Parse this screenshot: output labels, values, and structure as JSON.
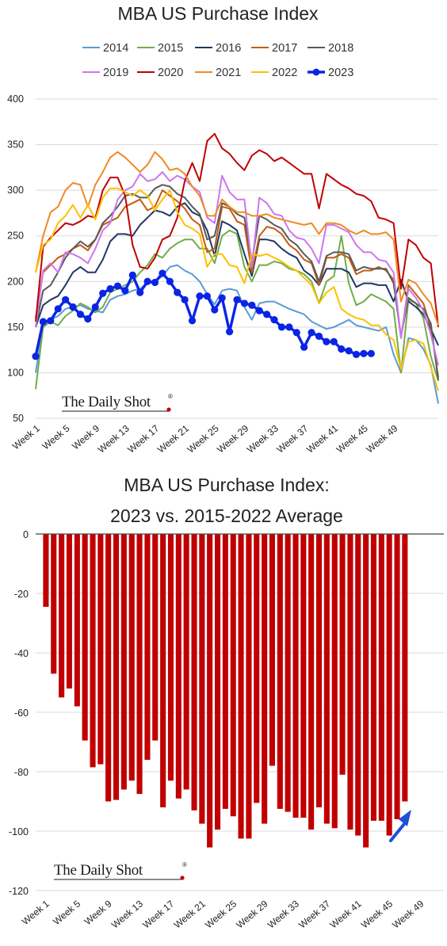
{
  "colors": {
    "2014": "#5b9bd5",
    "2015": "#70ad47",
    "2016": "#1f3864",
    "2017": "#c55a11",
    "2018": "#595959",
    "2019": "#cc77ee",
    "2020": "#c00000",
    "2021": "#f08a24",
    "2022": "#ffc000",
    "2023": "#0a24e6",
    "bar": "#c00000",
    "arrow": "#1f4fd6"
  },
  "branding": {
    "name": "The Daily Shot",
    "mark": "®"
  },
  "chart_data": [
    {
      "type": "line",
      "title": "MBA US Purchase Index",
      "xlabel": "",
      "ylabel": "",
      "ylim": [
        50,
        400
      ],
      "yticks": [
        50,
        100,
        150,
        200,
        250,
        300,
        350,
        400
      ],
      "xticks": [
        "Week 1",
        "Week 5",
        "Week 9",
        "Week 13",
        "Week 17",
        "Week 21",
        "Week 25",
        "Week 29",
        "Week 33",
        "Week 37",
        "Week 41",
        "Week 45",
        "Week 49"
      ],
      "grid": true,
      "legend": "top",
      "series": [
        {
          "name": "2014",
          "values": [
            100,
            152,
            158,
            162,
            170,
            172,
            174,
            170,
            168,
            166,
            180,
            184,
            186,
            190,
            192,
            198,
            200,
            206,
            216,
            218,
            212,
            208,
            200,
            186,
            175,
            190,
            192,
            190,
            172,
            158,
            176,
            178,
            178,
            174,
            170,
            167,
            164,
            156,
            152,
            148,
            150,
            154,
            158,
            152,
            150,
            148,
            146,
            150,
            120,
            100,
            138,
            136,
            126,
            108,
            66
          ]
        },
        {
          "name": "2015",
          "values": [
            82,
            150,
            156,
            152,
            162,
            168,
            176,
            172,
            166,
            172,
            188,
            192,
            196,
            200,
            210,
            218,
            230,
            226,
            236,
            242,
            246,
            246,
            236,
            236,
            220,
            250,
            256,
            252,
            216,
            200,
            218,
            218,
            222,
            220,
            214,
            212,
            208,
            200,
            176,
            200,
            206,
            250,
            198,
            174,
            178,
            186,
            182,
            178,
            170,
            100,
            180,
            176,
            160,
            118,
            91
          ]
        },
        {
          "name": "2016",
          "values": [
            150,
            174,
            180,
            184,
            196,
            210,
            216,
            210,
            210,
            224,
            244,
            252,
            252,
            250,
            262,
            270,
            278,
            276,
            272,
            282,
            286,
            276,
            272,
            256,
            228,
            266,
            262,
            256,
            230,
            206,
            246,
            246,
            244,
            236,
            230,
            226,
            212,
            206,
            196,
            214,
            214,
            214,
            210,
            194,
            198,
            198,
            196,
            196,
            178,
            202,
            178,
            172,
            164,
            148,
            130
          ]
        },
        {
          "name": "2017",
          "values": [
            160,
            210,
            218,
            226,
            230,
            236,
            240,
            234,
            246,
            262,
            266,
            270,
            282,
            286,
            290,
            278,
            282,
            300,
            294,
            288,
            280,
            268,
            262,
            232,
            236,
            282,
            280,
            266,
            262,
            210,
            250,
            260,
            258,
            252,
            240,
            234,
            224,
            220,
            196,
            226,
            226,
            230,
            226,
            208,
            212,
            212,
            216,
            212,
            202,
            138,
            196,
            186,
            176,
            150,
            95
          ]
        },
        {
          "name": "2018",
          "values": [
            150,
            190,
            196,
            210,
            226,
            236,
            244,
            238,
            246,
            264,
            272,
            282,
            294,
            296,
            292,
            292,
            302,
            306,
            304,
            296,
            292,
            282,
            274,
            246,
            250,
            286,
            282,
            274,
            270,
            222,
            272,
            268,
            262,
            258,
            246,
            240,
            230,
            222,
            200,
            228,
            232,
            232,
            230,
            212,
            216,
            214,
            214,
            214,
            198,
            140,
            182,
            176,
            170,
            154,
            92
          ]
        },
        {
          "name": "2019",
          "values": [
            150,
            212,
            220,
            210,
            232,
            230,
            226,
            220,
            236,
            256,
            264,
            290,
            300,
            304,
            318,
            310,
            312,
            320,
            310,
            316,
            312,
            304,
            298,
            270,
            264,
            316,
            298,
            290,
            290,
            216,
            292,
            286,
            274,
            272,
            256,
            248,
            246,
            236,
            220,
            262,
            262,
            258,
            254,
            240,
            232,
            232,
            224,
            222,
            210,
            138,
            192,
            182,
            168,
            142,
            108
          ]
        },
        {
          "name": "2020",
          "values": [
            156,
            238,
            248,
            256,
            264,
            262,
            266,
            272,
            270,
            300,
            314,
            314,
            294,
            240,
            216,
            214,
            226,
            246,
            250,
            270,
            310,
            330,
            310,
            354,
            362,
            346,
            340,
            330,
            322,
            338,
            344,
            340,
            332,
            336,
            330,
            324,
            318,
            318,
            280,
            318,
            312,
            306,
            302,
            296,
            294,
            288,
            270,
            268,
            264,
            192,
            246,
            240,
            226,
            220,
            150
          ]
        },
        {
          "name": "2021",
          "values": [
            210,
            250,
            276,
            282,
            300,
            308,
            306,
            282,
            306,
            320,
            336,
            342,
            336,
            328,
            320,
            328,
            342,
            334,
            322,
            324,
            318,
            304,
            294,
            272,
            272,
            290,
            282,
            276,
            276,
            272,
            272,
            274,
            270,
            268,
            266,
            264,
            262,
            264,
            252,
            264,
            264,
            262,
            256,
            252,
            256,
            252,
            252,
            254,
            246,
            178,
            202,
            198,
            186,
            176,
            152
          ]
        },
        {
          "name": "2022",
          "values": [
            210,
            240,
            246,
            264,
            272,
            284,
            270,
            284,
            268,
            292,
            302,
            302,
            298,
            294,
            300,
            294,
            278,
            290,
            300,
            276,
            262,
            258,
            252,
            216,
            230,
            230,
            218,
            216,
            198,
            230,
            228,
            230,
            226,
            222,
            216,
            212,
            204,
            196,
            176,
            188,
            194,
            170,
            164,
            160,
            158,
            152,
            152,
            142,
            136,
            104,
            134,
            136,
            132,
            106,
            80
          ]
        },
        {
          "name": "2023",
          "values": [
            118,
            156,
            157,
            170,
            180,
            172,
            164,
            159,
            172,
            187,
            192,
            195,
            190,
            207,
            188,
            200,
            199,
            209,
            200,
            188,
            180,
            157,
            184,
            184,
            169,
            182,
            145,
            180,
            176,
            174,
            168,
            164,
            158,
            150,
            150,
            144,
            128,
            144,
            140,
            134,
            134,
            126,
            124,
            120,
            121,
            121
          ]
        }
      ]
    },
    {
      "type": "bar",
      "title": "MBA US Purchase Index:\n2023 vs. 2015-2022 Average",
      "xlabel": "",
      "ylabel": "",
      "ylim": [
        -120,
        0
      ],
      "yticks": [
        -120,
        -100,
        -80,
        -60,
        -40,
        -20,
        0
      ],
      "xticks": [
        "Week 1",
        "Week 5",
        "Week 9",
        "Week 13",
        "Week 17",
        "Week 21",
        "Week 25",
        "Week 29",
        "Week 33",
        "Week 37",
        "Week 41",
        "Week 45",
        "Week 49"
      ],
      "grid": true,
      "legend": "none",
      "categories_count": 52,
      "values": [
        -24.5,
        -47,
        -55,
        -52,
        -58,
        -69.5,
        -78.5,
        -77.5,
        -90,
        -89.5,
        -86,
        -83,
        -87.5,
        -76,
        -69.5,
        -92,
        -83,
        -89,
        -86,
        -93,
        -97.5,
        -105.5,
        -99.5,
        -92.5,
        -95,
        -102.5,
        -102.5,
        -90.5,
        -97.5,
        -78,
        -92.5,
        -93.5,
        -95.5,
        -95.5,
        -99.5,
        -92,
        -97.5,
        -99,
        -81,
        -99.5,
        -101.5,
        -105.5,
        -96.5,
        -96.5,
        -101.5,
        -96,
        -90
      ],
      "annotation": "upward arrow near Week 47"
    }
  ]
}
